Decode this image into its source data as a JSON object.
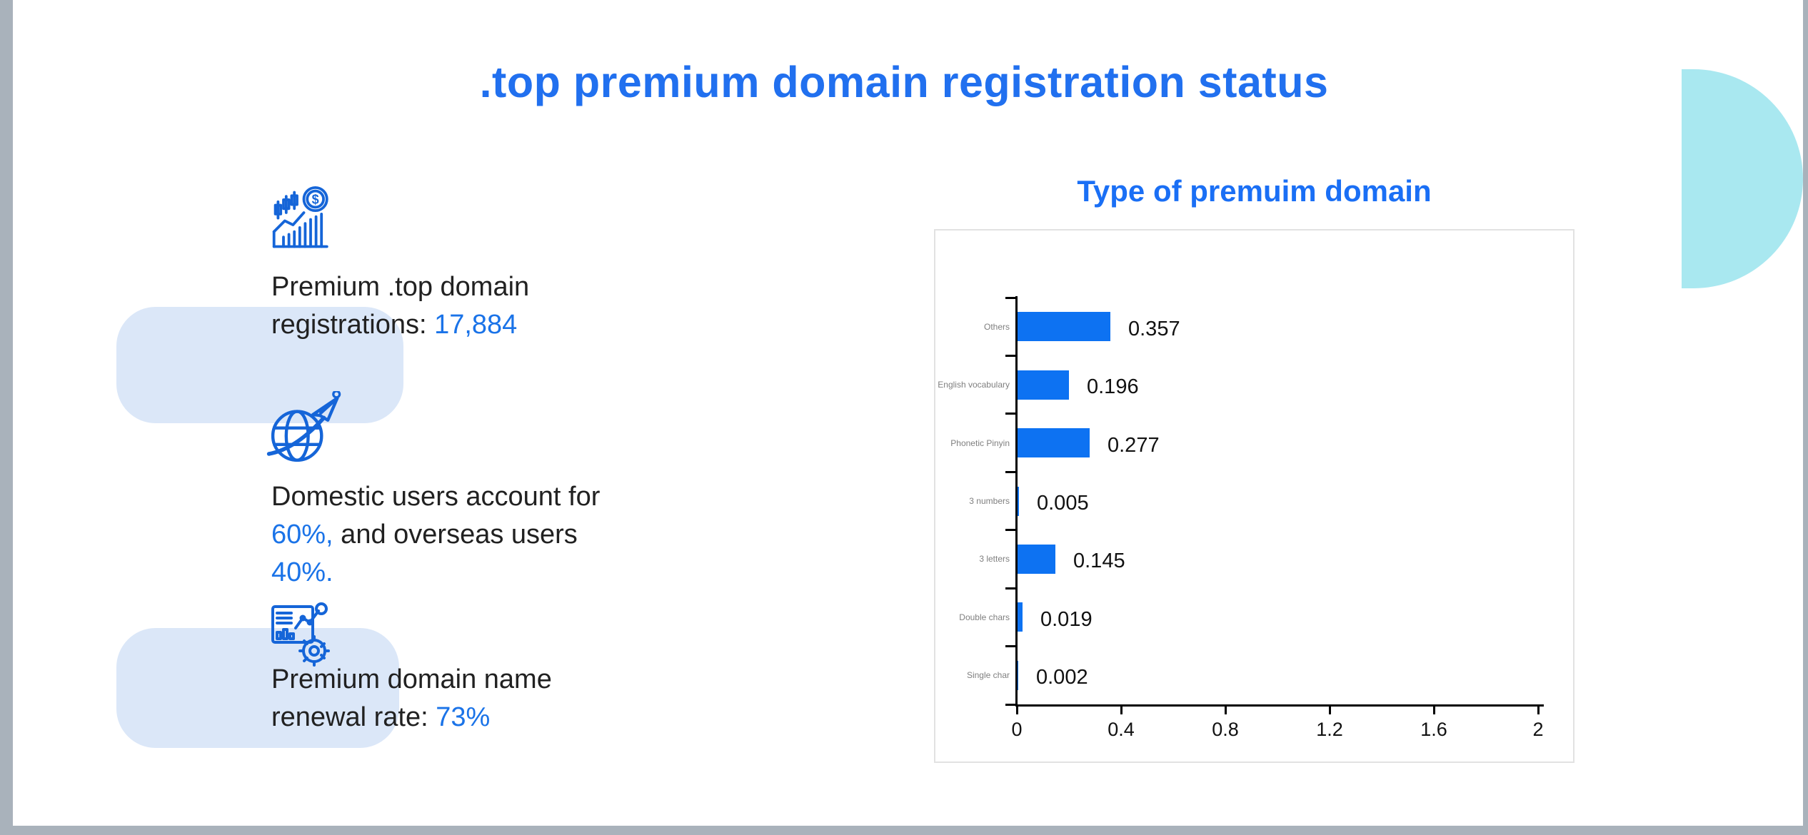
{
  "slide": {
    "title": ".top premium domain registration status"
  },
  "stats": [
    {
      "icon": "finance-growth-icon",
      "lines": [
        [
          {
            "text": "Premium .top domain",
            "accent": false
          }
        ],
        [
          {
            "text": "registrations: ",
            "accent": false
          },
          {
            "text": "17,884",
            "accent": true
          }
        ]
      ]
    },
    {
      "icon": "globe-plane-icon",
      "lines": [
        [
          {
            "text": "Domestic users account for",
            "accent": false
          }
        ],
        [
          {
            "text": "60%,",
            "accent": true
          },
          {
            "text": " and overseas users",
            "accent": false
          }
        ],
        [
          {
            "text": "40%.",
            "accent": true
          }
        ]
      ]
    },
    {
      "icon": "analytics-gear-icon",
      "lines": [
        [
          {
            "text": "Premium domain name",
            "accent": false
          }
        ],
        [
          {
            "text": "renewal rate: ",
            "accent": false
          },
          {
            "text": "73%",
            "accent": true
          }
        ]
      ]
    }
  ],
  "chart": {
    "title": "Type of premuim domain"
  },
  "chart_data": {
    "type": "bar",
    "orientation": "horizontal",
    "title": "Type of premuim domain",
    "categories": [
      "Others",
      "English vocabulary",
      "Phonetic Pinyin",
      "3 numbers",
      "3 letters",
      "Double chars",
      "Single char"
    ],
    "values": [
      0.357,
      0.196,
      0.277,
      0.005,
      0.145,
      0.019,
      0.002
    ],
    "value_labels": [
      "0.357",
      "0.196",
      "0.277",
      "0.005",
      "0.145",
      "0.019",
      "0.002"
    ],
    "xlabel": "",
    "ylabel": "",
    "xlim": [
      0,
      2
    ],
    "xticks": [
      0,
      0.4,
      0.8,
      1.2,
      1.6,
      2
    ],
    "xtick_labels": [
      "0",
      "0.4",
      "0.8",
      "1.2",
      "1.6",
      "2"
    ],
    "grid": false,
    "legend": false
  },
  "colors": {
    "title_blue": "#2170ef",
    "chart_title_blue": "#1a6ff5",
    "accent_blue": "#1a73e8",
    "icon_blue": "#1565d8",
    "bar_blue": "#0d72f2",
    "deco_light_blue": "#dbe7f8",
    "deco_cyan": "#a9e8f0",
    "edge_gray": "#a9b2bb",
    "category_label_gray": "#7f7f7f",
    "axis_black": "#000000"
  }
}
